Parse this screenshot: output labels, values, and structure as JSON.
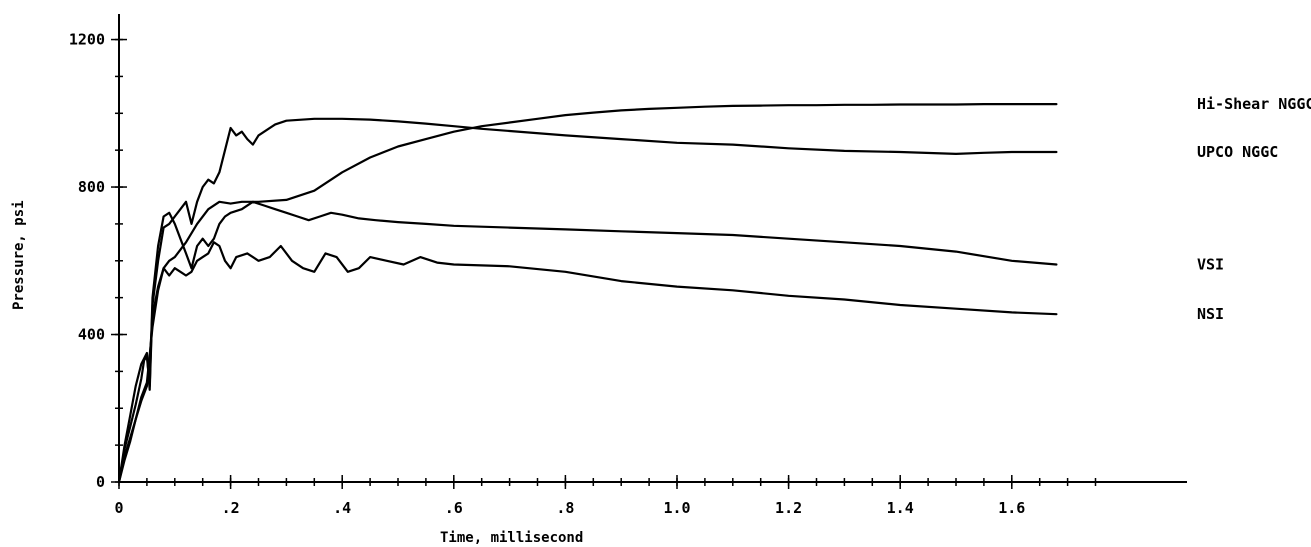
{
  "chart_data": {
    "type": "line",
    "xlabel": "Time, millisecond",
    "ylabel": "Pressure, psi",
    "xlim": [
      0,
      1.76
    ],
    "ylim": [
      0,
      1280
    ],
    "x_ticks": [
      {
        "value": 0,
        "label": "0"
      },
      {
        "value": 0.2,
        "label": ".2"
      },
      {
        "value": 0.4,
        "label": ".4"
      },
      {
        "value": 0.6,
        "label": ".6"
      },
      {
        "value": 0.8,
        "label": ".8"
      },
      {
        "value": 1.0,
        "label": "1.0"
      },
      {
        "value": 1.2,
        "label": "1.2"
      },
      {
        "value": 1.4,
        "label": "1.4"
      },
      {
        "value": 1.6,
        "label": "1.6"
      }
    ],
    "x_minor_step": 0.05,
    "y_ticks": [
      {
        "value": 0,
        "label": "0"
      },
      {
        "value": 400,
        "label": "400"
      },
      {
        "value": 800,
        "label": "800"
      },
      {
        "value": 1200,
        "label": "1200"
      }
    ],
    "y_minor_step": 100,
    "grid": false,
    "series": [
      {
        "name": "Hi-Shear NGGC",
        "x": [
          0,
          0.01,
          0.02,
          0.03,
          0.04,
          0.05,
          0.06,
          0.07,
          0.08,
          0.09,
          0.1,
          0.12,
          0.14,
          0.16,
          0.18,
          0.2,
          0.22,
          0.25,
          0.3,
          0.35,
          0.4,
          0.45,
          0.5,
          0.55,
          0.6,
          0.65,
          0.7,
          0.75,
          0.8,
          0.85,
          0.9,
          0.95,
          1.0,
          1.05,
          1.1,
          1.15,
          1.2,
          1.25,
          1.3,
          1.35,
          1.4,
          1.45,
          1.5,
          1.55,
          1.6,
          1.65,
          1.68
        ],
        "values": [
          0,
          60,
          110,
          170,
          230,
          270,
          420,
          520,
          580,
          600,
          610,
          650,
          700,
          740,
          760,
          755,
          760,
          760,
          765,
          790,
          840,
          880,
          910,
          930,
          950,
          965,
          975,
          985,
          995,
          1002,
          1008,
          1012,
          1015,
          1018,
          1020,
          1021,
          1022,
          1022,
          1023,
          1023,
          1024,
          1024,
          1024,
          1025,
          1025,
          1025,
          1025
        ]
      },
      {
        "name": "UPCO NGGC",
        "x": [
          0,
          0.01,
          0.02,
          0.03,
          0.04,
          0.05,
          0.055,
          0.06,
          0.07,
          0.08,
          0.09,
          0.1,
          0.11,
          0.12,
          0.13,
          0.14,
          0.15,
          0.16,
          0.17,
          0.18,
          0.19,
          0.2,
          0.21,
          0.22,
          0.23,
          0.24,
          0.25,
          0.28,
          0.3,
          0.35,
          0.4,
          0.45,
          0.5,
          0.55,
          0.6,
          0.65,
          0.7,
          0.8,
          0.9,
          1.0,
          1.1,
          1.2,
          1.3,
          1.4,
          1.5,
          1.55,
          1.6,
          1.68
        ],
        "values": [
          0,
          100,
          180,
          260,
          320,
          350,
          250,
          480,
          600,
          690,
          700,
          720,
          740,
          760,
          700,
          760,
          800,
          820,
          810,
          840,
          900,
          960,
          940,
          950,
          930,
          915,
          940,
          970,
          980,
          985,
          985,
          983,
          978,
          972,
          965,
          958,
          952,
          940,
          930,
          920,
          915,
          905,
          898,
          895,
          890,
          893,
          895,
          895
        ]
      },
      {
        "name": "VSI",
        "x": [
          0,
          0.01,
          0.02,
          0.03,
          0.04,
          0.045,
          0.05,
          0.055,
          0.06,
          0.07,
          0.08,
          0.09,
          0.1,
          0.11,
          0.12,
          0.13,
          0.14,
          0.15,
          0.16,
          0.17,
          0.18,
          0.19,
          0.2,
          0.22,
          0.24,
          0.26,
          0.28,
          0.3,
          0.32,
          0.34,
          0.36,
          0.38,
          0.4,
          0.43,
          0.46,
          0.5,
          0.55,
          0.6,
          0.7,
          0.8,
          0.9,
          1.0,
          1.1,
          1.2,
          1.3,
          1.4,
          1.5,
          1.6,
          1.68
        ],
        "values": [
          0,
          90,
          150,
          210,
          280,
          330,
          340,
          260,
          500,
          640,
          720,
          730,
          700,
          660,
          620,
          580,
          640,
          660,
          640,
          660,
          700,
          720,
          730,
          740,
          760,
          750,
          740,
          730,
          720,
          710,
          720,
          730,
          725,
          715,
          710,
          705,
          700,
          695,
          690,
          685,
          680,
          675,
          670,
          660,
          650,
          640,
          625,
          600,
          590
        ]
      },
      {
        "name": "NSI",
        "x": [
          0,
          0.01,
          0.02,
          0.03,
          0.04,
          0.05,
          0.055,
          0.06,
          0.07,
          0.08,
          0.09,
          0.1,
          0.11,
          0.12,
          0.13,
          0.14,
          0.15,
          0.16,
          0.17,
          0.18,
          0.19,
          0.2,
          0.21,
          0.23,
          0.25,
          0.27,
          0.29,
          0.31,
          0.33,
          0.35,
          0.37,
          0.39,
          0.41,
          0.43,
          0.45,
          0.48,
          0.51,
          0.54,
          0.57,
          0.6,
          0.7,
          0.8,
          0.9,
          1.0,
          1.1,
          1.2,
          1.3,
          1.4,
          1.5,
          1.6,
          1.68
        ],
        "values": [
          0,
          70,
          120,
          170,
          220,
          260,
          330,
          450,
          530,
          580,
          560,
          580,
          570,
          560,
          570,
          600,
          610,
          620,
          650,
          640,
          600,
          580,
          610,
          620,
          600,
          610,
          640,
          600,
          580,
          570,
          620,
          610,
          570,
          580,
          610,
          600,
          590,
          610,
          595,
          590,
          585,
          570,
          545,
          530,
          520,
          505,
          495,
          480,
          470,
          460,
          455
        ]
      }
    ]
  }
}
